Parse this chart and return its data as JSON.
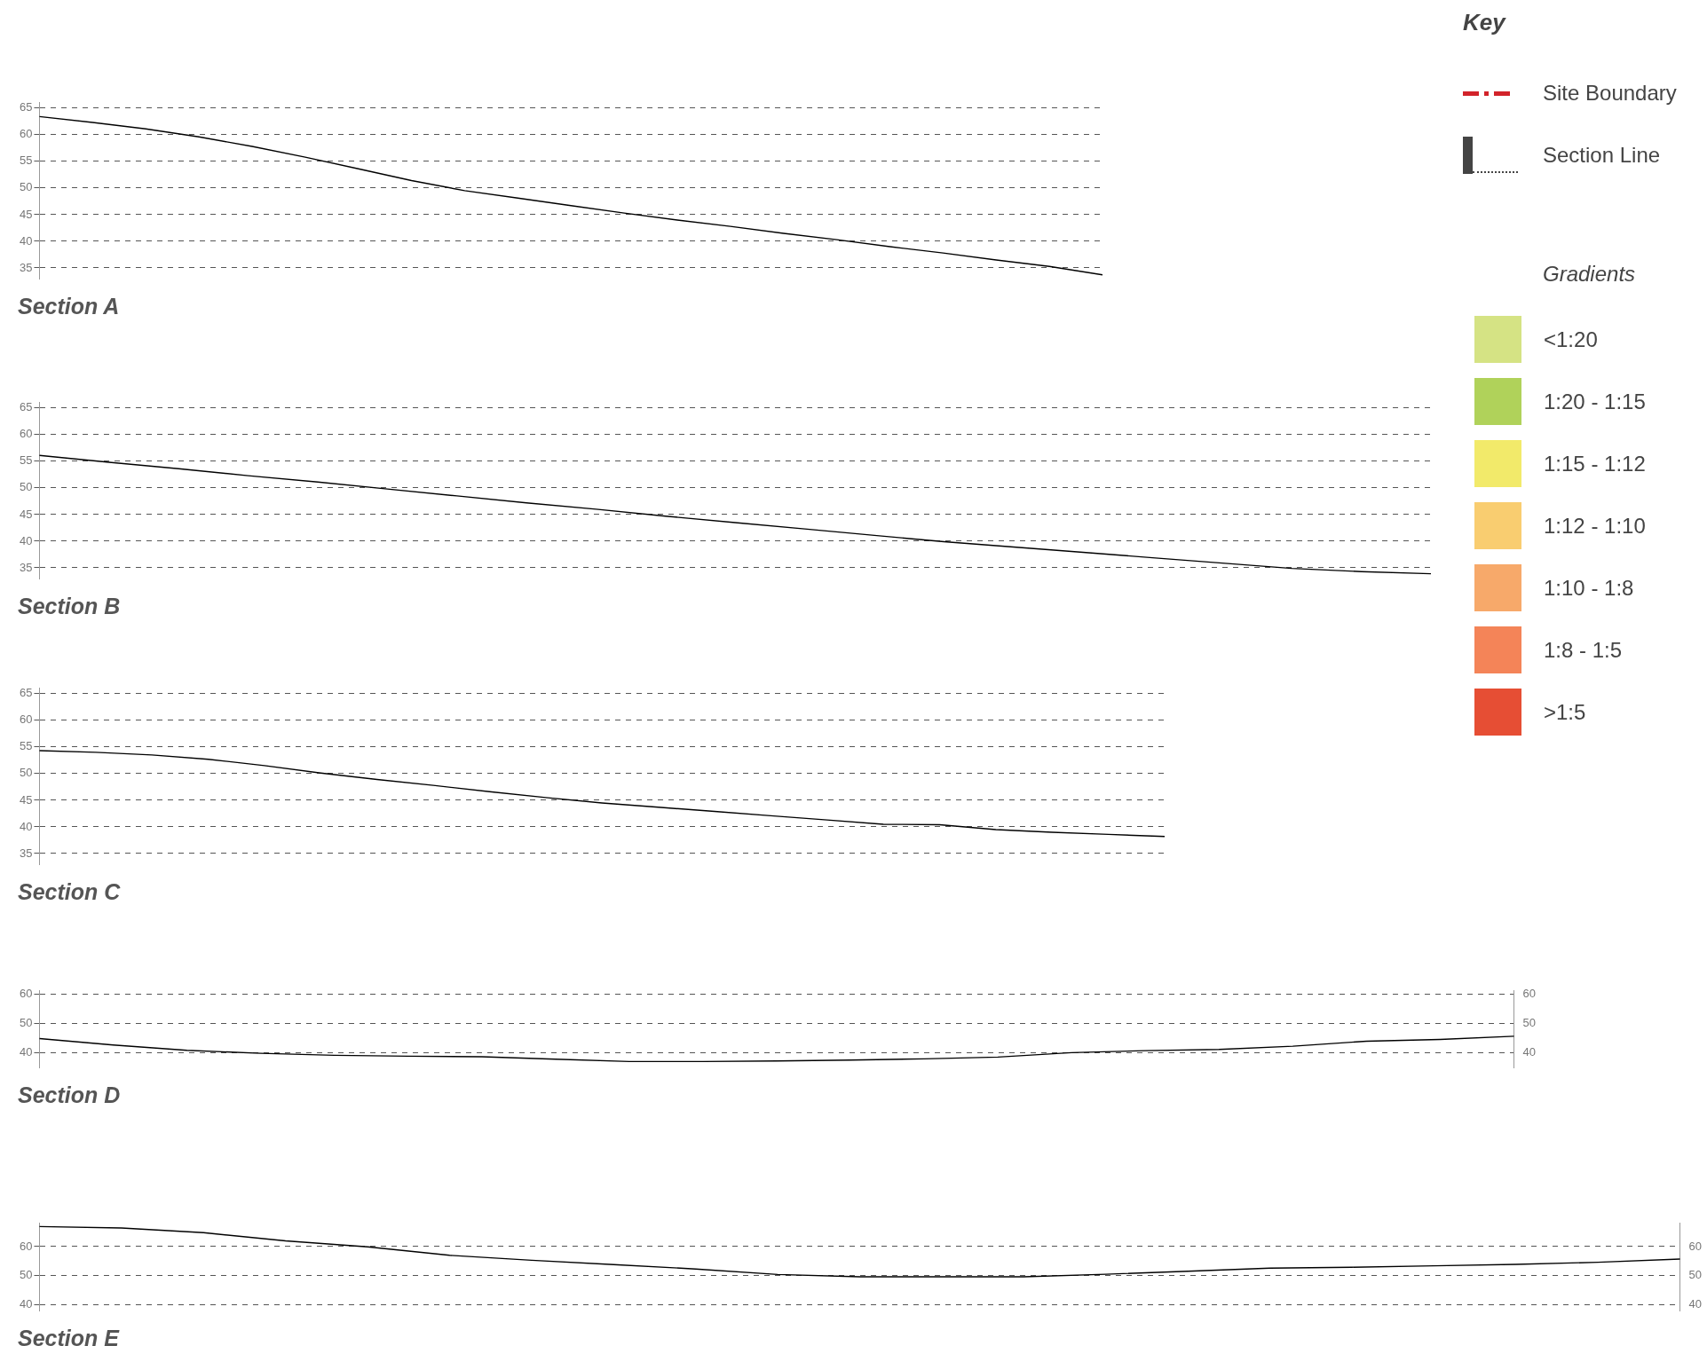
{
  "chart_data": [
    {
      "type": "line",
      "title": "Section A",
      "categories": [
        null,
        null,
        null,
        null,
        null,
        null,
        null,
        null,
        null,
        null,
        null,
        null,
        null,
        null,
        null,
        null,
        null,
        null,
        null,
        null,
        null
      ],
      "values": [
        63.4,
        62.3,
        61.1,
        59.6,
        57.8,
        55.8,
        53.6,
        51.4,
        49.5,
        48.1,
        46.7,
        45.3,
        44.0,
        42.8,
        41.5,
        40.3,
        39.0,
        37.8,
        36.5,
        35.3,
        33.7
      ],
      "color": "#000000",
      "ylim": [
        33,
        66
      ],
      "yticks": [
        35,
        40,
        45,
        50,
        55,
        60,
        65
      ],
      "grid": "y",
      "tick_labels": "y"
    },
    {
      "type": "line",
      "title": "Section B",
      "categories": [
        null,
        null,
        null,
        null,
        null,
        null,
        null,
        null,
        null,
        null,
        null,
        null,
        null,
        null,
        null,
        null,
        null,
        null,
        null,
        null,
        null
      ],
      "values": [
        56.1,
        54.8,
        53.6,
        52.3,
        51.1,
        49.8,
        48.5,
        47.2,
        46.0,
        44.7,
        43.5,
        42.3,
        41.1,
        39.9,
        38.9,
        37.9,
        36.9,
        35.9,
        34.9,
        34.3,
        33.9
      ],
      "color": "#000000",
      "ylim": [
        33,
        66
      ],
      "yticks": [
        35,
        40,
        45,
        50,
        55,
        60,
        65
      ],
      "grid": "y",
      "tick_labels": "y"
    },
    {
      "type": "line",
      "title": "Section C",
      "categories": [
        null,
        null,
        null,
        null,
        null,
        null,
        null,
        null,
        null,
        null,
        null,
        null,
        null,
        null,
        null,
        null,
        null,
        null,
        null,
        null,
        null
      ],
      "values": [
        54.3,
        54.0,
        53.5,
        52.7,
        51.5,
        50.1,
        48.9,
        47.8,
        46.6,
        45.5,
        44.5,
        43.7,
        42.9,
        42.1,
        41.3,
        40.5,
        40.4,
        39.5,
        39.0,
        38.6,
        38.2
      ],
      "color": "#000000",
      "ylim": [
        33,
        66
      ],
      "yticks": [
        35,
        40,
        45,
        50,
        55,
        60,
        65
      ],
      "grid": "y",
      "tick_labels": "y"
    },
    {
      "type": "line",
      "title": "Section D",
      "categories": [
        null,
        null,
        null,
        null,
        null,
        null,
        null,
        null,
        null,
        null,
        null,
        null,
        null,
        null,
        null,
        null,
        null,
        null,
        null,
        null,
        null
      ],
      "values": [
        44.8,
        42.6,
        40.8,
        39.8,
        39.1,
        38.8,
        38.6,
        37.8,
        37.0,
        37.0,
        37.2,
        37.5,
        37.9,
        38.5,
        40.0,
        40.7,
        41.1,
        42.2,
        43.9,
        44.5,
        45.6
      ],
      "color": "#000000",
      "ylim": [
        35,
        61
      ],
      "yticks": [
        40,
        50,
        60
      ],
      "y2lim": [
        35,
        61
      ],
      "y2ticks": [
        40,
        50,
        60
      ],
      "grid": "y",
      "tick_labels": "y"
    },
    {
      "type": "line",
      "title": "Section E",
      "categories": [
        null,
        null,
        null,
        null,
        null,
        null,
        null,
        null,
        null,
        null,
        null,
        null,
        null,
        null,
        null,
        null,
        null,
        null,
        null,
        null,
        null
      ],
      "values": [
        66.9,
        66.4,
        64.8,
        62.0,
        59.9,
        57.0,
        55.3,
        53.8,
        52.3,
        50.4,
        49.6,
        49.6,
        49.6,
        50.5,
        51.5,
        52.6,
        52.9,
        53.4,
        53.9,
        54.6,
        55.7
      ],
      "color": "#000000",
      "ylim": [
        38,
        68
      ],
      "yticks": [
        40,
        50,
        60
      ],
      "y2lim": [
        38,
        68
      ],
      "y2ticks": [
        40,
        50,
        60
      ],
      "grid": "y",
      "tick_labels": "y"
    },
    {
      "type": "other",
      "title": "Key",
      "annotations": [
        "Site Boundary",
        "Section Line"
      ],
      "legend_title": "Gradients",
      "categories": [
        "<1:20",
        "1:20 - 1:15",
        "1:15 - 1:12",
        "1:12 - 1:10",
        "1:10 - 1:8",
        "1:8 - 1:5",
        ">1:5"
      ],
      "colors": [
        "#d5e384",
        "#b0d25a",
        "#f2ea6a",
        "#f9cd70",
        "#f7a96a",
        "#f48458",
        "#e64e34"
      ]
    }
  ]
}
